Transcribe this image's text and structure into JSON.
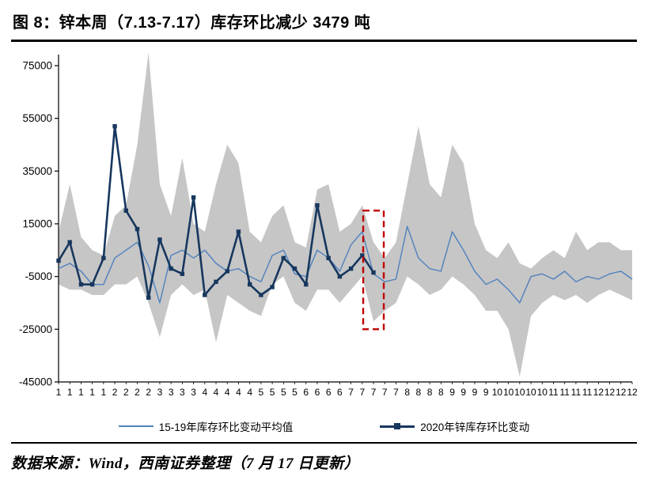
{
  "figure": {
    "title": "图 8：锌本周（7.13-7.17）库存环比减少 3479 吨",
    "source": "数据来源：Wind，西南证券整理（7 月 17 日更新）"
  },
  "legend": {
    "avg": "15-19年库存环比变动平均值",
    "y2020": "2020年锌库存环比变动"
  },
  "colors": {
    "avg_line": "#4f81bd",
    "line_2020": "#17375e",
    "band": "#c6c6c6",
    "highlight": "#c00000",
    "axis": "#000000"
  },
  "chart_data": {
    "type": "line",
    "title": "图 8：锌本周（7.13-7.17）库存环比减少 3479 吨",
    "xlabel": "",
    "ylabel": "",
    "ylim": [
      -45000,
      75000
    ],
    "y_ticks": [
      75000,
      55000,
      35000,
      15000,
      -5000,
      -25000,
      -45000
    ],
    "x_tick_labels": [
      "1",
      "1",
      "1",
      "1",
      "1",
      "2",
      "2",
      "2",
      "2",
      "3",
      "3",
      "3",
      "3",
      "4",
      "4",
      "4",
      "4",
      "4",
      "5",
      "5",
      "5",
      "5",
      "6",
      "6",
      "6",
      "6",
      "7",
      "7",
      "7",
      "7",
      "7",
      "8",
      "8",
      "8",
      "8",
      "9",
      "9",
      "9",
      "9",
      "10",
      "10",
      "10",
      "10",
      "10",
      "11",
      "11",
      "11",
      "11",
      "12",
      "12",
      "12",
      "12"
    ],
    "legend_position": "bottom",
    "band": {
      "color": "#c6c6c6",
      "upper": [
        12000,
        30000,
        10000,
        5000,
        3000,
        18000,
        22000,
        45000,
        80000,
        30000,
        18000,
        40000,
        15000,
        12000,
        30000,
        45000,
        38000,
        12000,
        8000,
        18000,
        22000,
        8000,
        6000,
        28000,
        30000,
        12000,
        15000,
        22000,
        8000,
        2000,
        8000,
        30000,
        52000,
        30000,
        25000,
        45000,
        38000,
        15000,
        5000,
        2000,
        8000,
        0,
        -2000,
        2000,
        5000,
        2000,
        12000,
        5000,
        8000,
        8000,
        5000,
        5000
      ],
      "lower": [
        -8000,
        -10000,
        -10000,
        -12000,
        -12000,
        -8000,
        -8000,
        -5000,
        -15000,
        -28000,
        -12000,
        -8000,
        -12000,
        -10000,
        -30000,
        -12000,
        -15000,
        -18000,
        -20000,
        -8000,
        -5000,
        -15000,
        -18000,
        -10000,
        -10000,
        -15000,
        -10000,
        -5000,
        -22000,
        -18000,
        -15000,
        -5000,
        -8000,
        -12000,
        -10000,
        -5000,
        -8000,
        -12000,
        -18000,
        -18000,
        -25000,
        -43000,
        -20000,
        -15000,
        -12000,
        -14000,
        -12000,
        -15000,
        -12000,
        -10000,
        -12000,
        -14000
      ]
    },
    "series": [
      {
        "name": "15-19年库存环比变动平均值",
        "style": "line",
        "color": "#4f81bd",
        "values": [
          -2000,
          0,
          -3000,
          -8000,
          -8000,
          2000,
          5000,
          8000,
          -1000,
          -15000,
          3000,
          5000,
          2000,
          5000,
          0,
          -3000,
          -2000,
          -5000,
          -7000,
          3000,
          5000,
          -4000,
          -5000,
          5000,
          2000,
          -3000,
          7000,
          12000,
          -4000,
          -7000,
          -6000,
          14000,
          2000,
          -2000,
          -3000,
          12000,
          5000,
          -3000,
          -8000,
          -6000,
          -10000,
          -15000,
          -5000,
          -4000,
          -6000,
          -3000,
          -7000,
          -5000,
          -6000,
          -4000,
          -3000,
          -6000
        ]
      },
      {
        "name": "2020年锌库存环比变动",
        "style": "line-square-markers",
        "color": "#17375e",
        "values": [
          1000,
          8000,
          -8000,
          -8000,
          2000,
          52000,
          20000,
          13000,
          -13000,
          9000,
          -2000,
          -4000,
          25000,
          -12000,
          -7000,
          -3000,
          12000,
          -8000,
          -12000,
          -9000,
          2000,
          -2000,
          -8000,
          22000,
          2000,
          -5000,
          -2000,
          3000,
          -3479
        ]
      }
    ],
    "highlight": {
      "shape": "dashed-box",
      "color": "#c00000",
      "index": 28,
      "y_from": -25000,
      "y_to": 20000
    }
  }
}
